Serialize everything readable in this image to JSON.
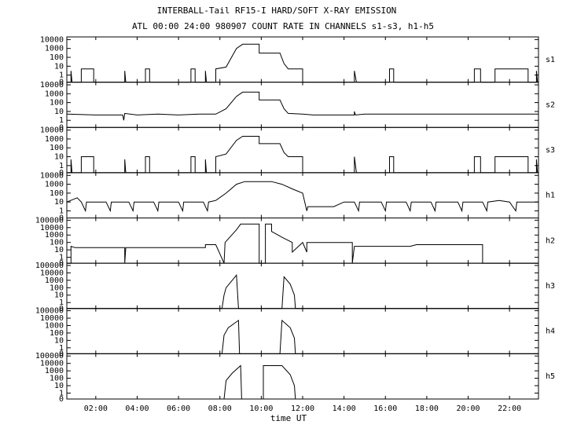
{
  "chart_data": {
    "type": "line",
    "title": "INTERBALL-Tail RF15-I HARD/SOFT X-RAY EMISSION",
    "subtitle": "ATL 00:00 24:00 980907  COUNT RATE IN CHANNELS s1-s3, h1-h5",
    "xlabel": "time UT",
    "yscale": "log",
    "grid": false,
    "xlim": [
      0.6,
      23.4
    ],
    "xticks": [
      {
        "value": 2,
        "label": "02:00"
      },
      {
        "value": 4,
        "label": "04:00"
      },
      {
        "value": 6,
        "label": "06:00"
      },
      {
        "value": 8,
        "label": "08:00"
      },
      {
        "value": 10,
        "label": "10:00"
      },
      {
        "value": 12,
        "label": "12:00"
      },
      {
        "value": 14,
        "label": "14:00"
      },
      {
        "value": 16,
        "label": "16:00"
      },
      {
        "value": 18,
        "label": "18:00"
      },
      {
        "value": 20,
        "label": "20:00"
      },
      {
        "value": 22,
        "label": "22:00"
      }
    ],
    "series": [
      {
        "name": "s1",
        "color": "#000000",
        "ylim": [
          0,
          20000
        ],
        "yticks": [
          0,
          1,
          10,
          100,
          1000,
          10000
        ],
        "x": [
          0.6,
          0.8,
          0.8,
          0.85,
          1.3,
          1.3,
          1.9,
          1.9,
          3.4,
          3.4,
          3.45,
          4.4,
          4.4,
          4.6,
          4.6,
          6.6,
          6.6,
          6.8,
          6.8,
          7.3,
          7.3,
          7.35,
          7.8,
          7.8,
          8.3,
          8.8,
          9.1,
          9.9,
          9.9,
          10.9,
          11.1,
          11.3,
          12.0,
          12.0,
          14.5,
          14.5,
          14.6,
          16.2,
          16.2,
          16.4,
          16.4,
          20.3,
          20.3,
          20.6,
          20.6,
          21.3,
          21.3,
          22.9,
          22.9,
          23.3,
          23.3,
          23.35,
          23.4
        ],
        "values": [
          0,
          0,
          3,
          0,
          0,
          5,
          5,
          0,
          0,
          3,
          0,
          0,
          5,
          5,
          0,
          0,
          5,
          5,
          0,
          0,
          3,
          0,
          0,
          5,
          8,
          1000,
          3000,
          3000,
          300,
          300,
          20,
          5,
          5,
          0,
          0,
          3,
          0,
          0,
          5,
          5,
          0,
          0,
          5,
          5,
          0,
          0,
          5,
          5,
          0,
          0,
          3,
          0,
          0
        ]
      },
      {
        "name": "s2",
        "color": "#000000",
        "ylim": [
          0,
          20000
        ],
        "yticks": [
          0,
          1,
          10,
          100,
          1000,
          10000
        ],
        "x": [
          0.6,
          2,
          3.3,
          3.35,
          3.4,
          4,
          5,
          6,
          7,
          7.8,
          8.3,
          8.8,
          9.1,
          9.9,
          9.9,
          10.9,
          11.1,
          11.3,
          12,
          12.5,
          13,
          14.5,
          14.5,
          14.55,
          15,
          17,
          19,
          21,
          23.4
        ],
        "values": [
          5,
          4,
          4,
          1,
          6,
          4,
          5,
          4,
          5,
          5,
          20,
          500,
          1500,
          1500,
          200,
          200,
          20,
          6,
          5,
          4,
          4,
          4,
          10,
          4,
          5,
          5,
          5,
          5,
          5
        ]
      },
      {
        "name": "s3",
        "color": "#000000",
        "ylim": [
          0,
          20000
        ],
        "yticks": [
          0,
          1,
          10,
          100,
          1000,
          10000
        ],
        "x": [
          0.6,
          0.8,
          0.8,
          0.85,
          1.3,
          1.3,
          1.9,
          1.9,
          3.4,
          3.4,
          3.45,
          4.4,
          4.4,
          4.6,
          4.6,
          6.6,
          6.6,
          6.8,
          6.8,
          7.3,
          7.3,
          7.35,
          7.8,
          7.8,
          8.3,
          8.8,
          9.1,
          9.9,
          9.9,
          10.9,
          11.1,
          11.3,
          12.0,
          12.0,
          14.5,
          14.5,
          14.6,
          16.2,
          16.2,
          16.4,
          16.4,
          20.3,
          20.3,
          20.6,
          20.6,
          21.3,
          21.3,
          22.9,
          22.9,
          23.3,
          23.3,
          23.35,
          23.4
        ],
        "values": [
          0,
          0,
          5,
          0,
          0,
          10,
          10,
          0,
          0,
          5,
          0,
          0,
          10,
          10,
          0,
          0,
          10,
          10,
          0,
          0,
          5,
          0,
          0,
          10,
          20,
          700,
          2000,
          2000,
          300,
          300,
          30,
          10,
          10,
          0,
          0,
          10,
          0,
          0,
          10,
          10,
          0,
          0,
          10,
          10,
          0,
          0,
          10,
          10,
          0,
          0,
          5,
          0,
          0
        ]
      },
      {
        "name": "h1",
        "color": "#000000",
        "ylim": [
          0,
          20000
        ],
        "yticks": [
          0,
          1,
          10,
          100,
          1000,
          10000
        ],
        "x": [
          0.6,
          1.1,
          1.3,
          1.5,
          1.55,
          2.5,
          2.7,
          2.75,
          3.6,
          3.8,
          3.85,
          4.8,
          5.0,
          5.05,
          6.0,
          6.2,
          6.25,
          7.2,
          7.4,
          7.45,
          7.8,
          8.3,
          8.8,
          9.2,
          10.5,
          11,
          11.5,
          12,
          12.2,
          12.25,
          13.5,
          14,
          14.5,
          14.7,
          14.75,
          15.8,
          16,
          16.05,
          17,
          17.2,
          17.25,
          18.2,
          18.4,
          18.45,
          19.5,
          19.7,
          19.75,
          20.7,
          20.9,
          20.95,
          21.5,
          22,
          22.3,
          22.35,
          23.4
        ],
        "values": [
          10,
          30,
          10,
          1,
          10,
          10,
          1,
          10,
          10,
          1,
          10,
          10,
          1,
          10,
          10,
          1,
          10,
          10,
          1,
          10,
          15,
          100,
          1000,
          2000,
          2000,
          1000,
          300,
          100,
          1,
          3,
          3,
          10,
          10,
          1,
          10,
          10,
          1,
          10,
          10,
          1,
          10,
          10,
          1,
          10,
          10,
          1,
          10,
          10,
          1,
          10,
          15,
          10,
          1,
          10,
          10
        ]
      },
      {
        "name": "h2",
        "color": "#000000",
        "ylim": [
          0,
          200000
        ],
        "yticks": [
          0,
          1,
          10,
          100,
          1000,
          10000,
          100000
        ],
        "x": [
          0.6,
          0.8,
          0.8,
          1,
          3.4,
          3.4,
          3.45,
          7.3,
          7.3,
          7.8,
          8.2,
          8.25,
          8.8,
          9.0,
          9.9,
          9.9,
          10.2,
          10.2,
          10.5,
          10.5,
          11,
          11.5,
          11.5,
          12,
          12.2,
          12.2,
          14.4,
          14.4,
          14.5,
          17.2,
          17.5,
          20.7,
          20.7,
          23.4
        ],
        "values": [
          0,
          0,
          30,
          20,
          20,
          0,
          20,
          20,
          50,
          50,
          0,
          100,
          5000,
          30000,
          30000,
          0,
          0,
          30000,
          30000,
          3000,
          500,
          100,
          5,
          100,
          5,
          100,
          100,
          0,
          30,
          30,
          50,
          50,
          0,
          0
        ]
      },
      {
        "name": "h3",
        "color": "#000000",
        "ylim": [
          0,
          200000
        ],
        "yticks": [
          0,
          1,
          10,
          100,
          1000,
          10000,
          100000
        ],
        "x": [
          0.6,
          8.1,
          8.2,
          8.3,
          8.8,
          8.9,
          11.0,
          11.1,
          11.4,
          11.6,
          11.65,
          23.4
        ],
        "values": [
          0,
          0,
          10,
          100,
          5000,
          0,
          0,
          3000,
          300,
          10,
          0,
          0
        ]
      },
      {
        "name": "h4",
        "color": "#000000",
        "ylim": [
          0,
          200000
        ],
        "yticks": [
          0,
          1,
          10,
          100,
          1000,
          10000,
          100000
        ],
        "x": [
          0.6,
          8.1,
          8.2,
          8.4,
          8.9,
          8.95,
          10.9,
          11,
          11.4,
          11.6,
          11.65,
          23.4
        ],
        "values": [
          0,
          0,
          50,
          500,
          5000,
          0,
          0,
          5000,
          500,
          20,
          0,
          0
        ]
      },
      {
        "name": "h5",
        "color": "#000000",
        "ylim": [
          0,
          200000
        ],
        "yticks": [
          0,
          1,
          10,
          100,
          1000,
          10000,
          100000
        ],
        "x": [
          0.6,
          8.2,
          8.3,
          8.6,
          9.0,
          9.05,
          10.1,
          10.1,
          11,
          11.4,
          11.6,
          11.65,
          23.4
        ],
        "values": [
          0,
          0,
          50,
          500,
          5000,
          0,
          0,
          5000,
          5000,
          300,
          10,
          0,
          0
        ]
      }
    ]
  }
}
